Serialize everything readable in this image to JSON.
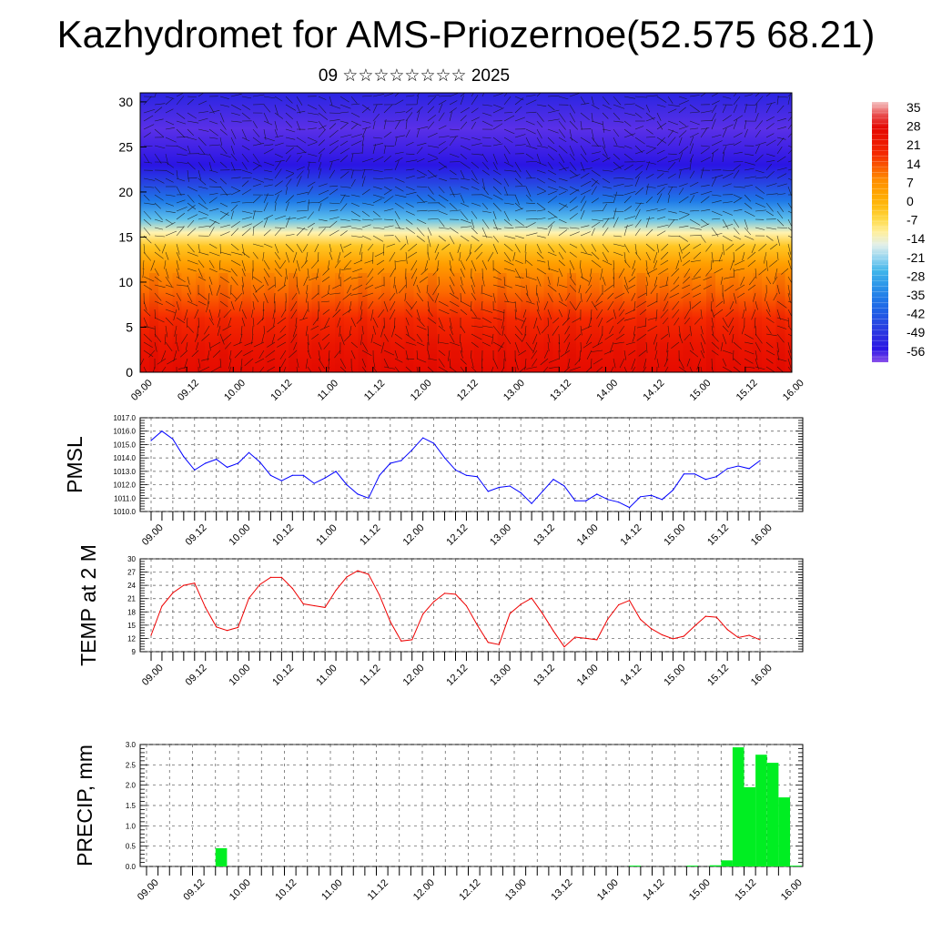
{
  "header": {
    "title": "Kazhydromet for AMS-Priozernoe(52.575 68.21)",
    "subtitle": "09 ☆☆☆☆☆☆☆☆ 2025"
  },
  "time_labels": [
    "09.00",
    "09.12",
    "10.00",
    "10.12",
    "11.00",
    "11.12",
    "12.00",
    "12.12",
    "13.00",
    "13.12",
    "14.00",
    "14.12",
    "15.00",
    "15.12",
    "16.00"
  ],
  "chart_data": [
    {
      "type": "heatmap",
      "y_ticks": [
        0,
        5,
        10,
        15,
        20,
        25,
        30
      ],
      "ylim": [
        0,
        31
      ],
      "colorbar": {
        "labels": [
          "35",
          "28",
          "21",
          "14",
          "7",
          "0",
          "-7",
          "-14",
          "-21",
          "-28",
          "-35",
          "-42",
          "-49",
          "-56"
        ],
        "range": [
          -60,
          38
        ]
      },
      "bands": [
        {
          "level": 0,
          "value": 27
        },
        {
          "level": 3,
          "value": 24
        },
        {
          "level": 6,
          "value": 18
        },
        {
          "level": 9,
          "value": 12
        },
        {
          "level": 12,
          "value": 5
        },
        {
          "level": 14,
          "value": -3
        },
        {
          "level": 15.5,
          "value": -12
        },
        {
          "level": 17,
          "value": -24
        },
        {
          "level": 19,
          "value": -36
        },
        {
          "level": 21,
          "value": -46
        },
        {
          "level": 23,
          "value": -55
        },
        {
          "level": 27,
          "value": -58
        },
        {
          "level": 31,
          "value": -52
        }
      ],
      "colors": {
        "hot": "#e8000b",
        "warm": "#ff8c00",
        "mild": "#ffd21e",
        "cool": "#d8ecf5",
        "cold": "#29a9e8",
        "deep": "#2a2adf",
        "min": "#2000e0"
      }
    },
    {
      "type": "line",
      "ylabel": "PMSL",
      "y_ticks": [
        "1010.0",
        "1011.0",
        "1012.0",
        "1013.0",
        "1014.0",
        "1015.0",
        "1016.0",
        "1017.0"
      ],
      "ylim": [
        1010,
        1017
      ],
      "color": "#0000ff",
      "x_start": 0,
      "x_step": 3,
      "values": [
        1015.3,
        1016.0,
        1015.4,
        1014.1,
        1013.1,
        1013.6,
        1013.9,
        1013.3,
        1013.6,
        1014.4,
        1013.7,
        1012.7,
        1012.3,
        1012.7,
        1012.7,
        1012.1,
        1012.5,
        1013.0,
        1012.0,
        1011.3,
        1011.0,
        1012.7,
        1013.6,
        1013.8,
        1014.6,
        1015.5,
        1015.1,
        1014.0,
        1013.1,
        1012.7,
        1012.6,
        1011.5,
        1011.8,
        1011.9,
        1011.4,
        1010.6,
        1011.5,
        1012.4,
        1011.9,
        1010.8,
        1010.8,
        1011.3,
        1010.9,
        1010.7,
        1010.3,
        1011.1,
        1011.2,
        1010.9,
        1011.6,
        1012.8,
        1012.8,
        1012.4,
        1012.6,
        1013.2,
        1013.4,
        1013.2,
        1013.8
      ]
    },
    {
      "type": "line",
      "ylabel": "TEMP at 2 M",
      "y_ticks": [
        "9",
        "12",
        "15",
        "18",
        "21",
        "24",
        "27",
        "30"
      ],
      "ylim": [
        9,
        30
      ],
      "color": "#ee0000",
      "x_start": 0,
      "x_step": 3,
      "values": [
        12.7,
        19.3,
        22.3,
        24.0,
        24.5,
        19.0,
        14.6,
        13.8,
        14.5,
        21.1,
        24.2,
        25.8,
        25.8,
        23.3,
        19.8,
        19.4,
        19.0,
        22.9,
        25.9,
        27.3,
        26.5,
        21.8,
        15.8,
        11.4,
        11.7,
        17.5,
        20.3,
        22.2,
        22.0,
        19.4,
        15.0,
        11.1,
        10.6,
        17.6,
        19.7,
        21.1,
        17.6,
        13.7,
        10.1,
        12.3,
        12.0,
        11.7,
        16.4,
        19.6,
        20.6,
        16.3,
        14.2,
        12.8,
        11.9,
        12.5,
        14.8,
        17.0,
        16.8,
        14.0,
        12.2,
        12.7,
        11.7
      ]
    },
    {
      "type": "bar",
      "ylabel": "PRECIP, mm",
      "y_ticks": [
        "0.0",
        "0.5",
        "1.0",
        "1.5",
        "2.0",
        "2.5",
        "3.0"
      ],
      "ylim": [
        0,
        3
      ],
      "color": "#00ee22",
      "bar_width_hours": 3,
      "bars": [
        {
          "t": 18,
          "v": 0.45
        },
        {
          "t": 126,
          "v": 0.02
        },
        {
          "t": 141,
          "v": 0.02
        },
        {
          "t": 147,
          "v": 0.03
        },
        {
          "t": 150,
          "v": 0.15
        },
        {
          "t": 153,
          "v": 2.93
        },
        {
          "t": 156,
          "v": 1.95
        },
        {
          "t": 159,
          "v": 2.75
        },
        {
          "t": 162,
          "v": 2.55
        },
        {
          "t": 165,
          "v": 1.7
        },
        {
          "t": 168,
          "v": 0.02
        }
      ]
    }
  ]
}
